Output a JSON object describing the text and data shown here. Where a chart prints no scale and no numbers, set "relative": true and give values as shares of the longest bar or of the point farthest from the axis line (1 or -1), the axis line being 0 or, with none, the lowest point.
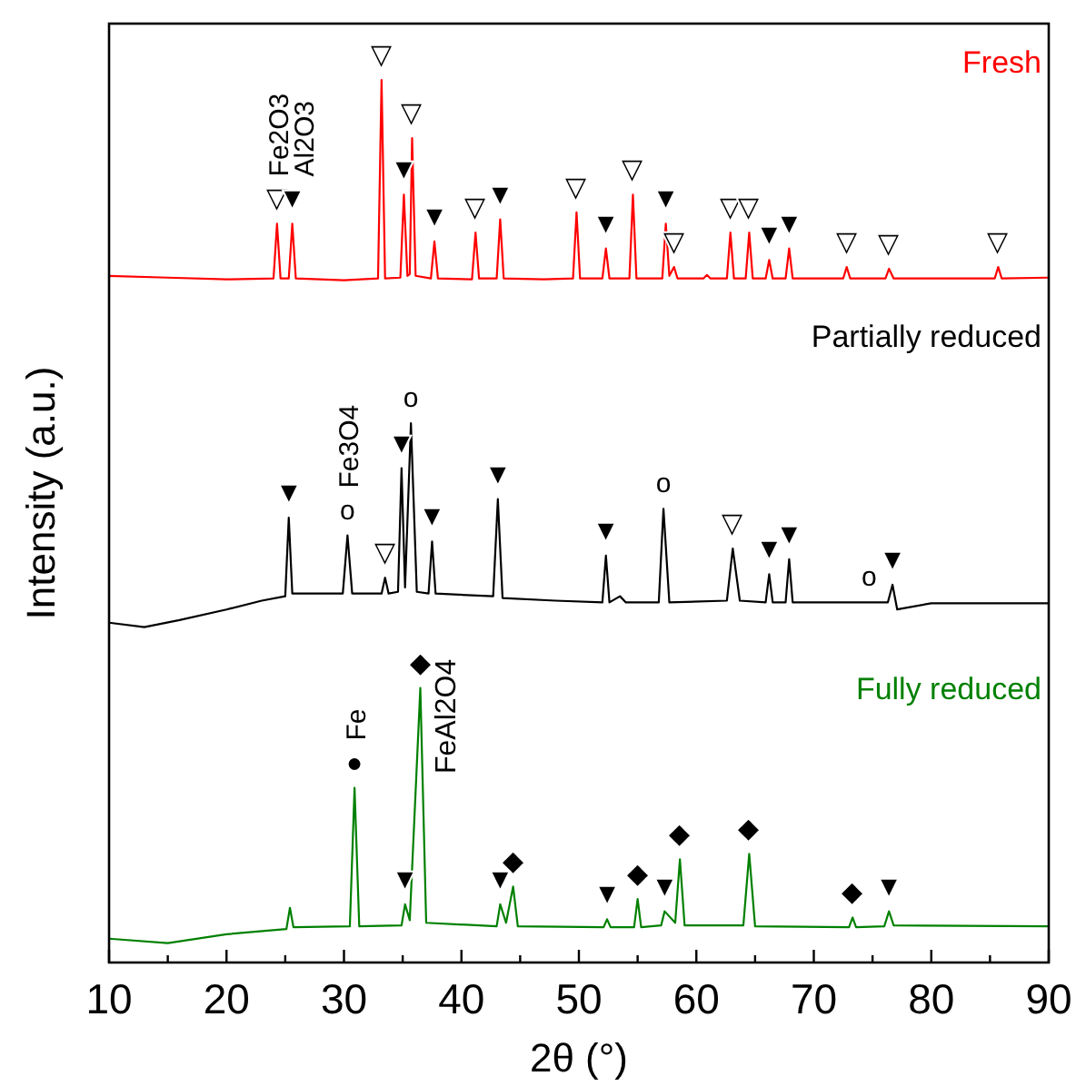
{
  "chart_data": {
    "type": "line",
    "relative": true,
    "xlabel": "2θ (°)",
    "ylabel": "Intensity (a.u.)",
    "xlim": [
      10,
      90
    ],
    "xticks": [
      10,
      {
        "value": 15,
        "label": null
      },
      20,
      {
        "value": 25,
        "label": null
      },
      30,
      {
        "value": 35,
        "label": null
      },
      40,
      {
        "value": 45,
        "label": null
      },
      50,
      {
        "value": 55,
        "label": null
      },
      60,
      {
        "value": 65,
        "label": null
      },
      70,
      {
        "value": 75,
        "label": null
      },
      80,
      {
        "value": 85,
        "label": null
      },
      90
    ],
    "grid": false,
    "marker": "none",
    "line_style": "solid",
    "series": [
      {
        "name": "Fresh",
        "color": "#ff0000",
        "x": [
          10,
          15,
          20,
          24.0,
          24.3,
          24.6,
          25.3,
          25.6,
          25.9,
          30,
          32.9,
          33.2,
          33.5,
          34.8,
          35.1,
          35.4,
          35.6,
          35.8,
          36.1,
          37.4,
          37.7,
          38.0,
          40.9,
          41.2,
          41.5,
          43.0,
          43.3,
          43.6,
          47,
          49.5,
          49.8,
          50.1,
          52.0,
          52.3,
          52.6,
          54.3,
          54.6,
          54.9,
          57.1,
          57.4,
          57.7,
          58.1,
          58.4,
          60.6,
          60.9,
          61.2,
          62.6,
          62.9,
          63.2,
          64.2,
          64.5,
          64.8,
          65.9,
          66.2,
          66.5,
          67.6,
          67.9,
          68.2,
          72.5,
          72.8,
          73.1,
          76.1,
          76.4,
          76.8,
          85.4,
          85.7,
          86.0,
          90
        ],
        "values": [
          0.778,
          0.776,
          0.774,
          0.775,
          0.837,
          0.775,
          0.775,
          0.837,
          0.775,
          0.773,
          0.775,
          1.0,
          0.775,
          0.776,
          0.87,
          0.778,
          0.78,
          0.934,
          0.778,
          0.775,
          0.817,
          0.775,
          0.774,
          0.827,
          0.775,
          0.775,
          0.842,
          0.775,
          0.774,
          0.775,
          0.85,
          0.775,
          0.775,
          0.809,
          0.775,
          0.775,
          0.87,
          0.775,
          0.775,
          0.837,
          0.778,
          0.788,
          0.775,
          0.775,
          0.779,
          0.775,
          0.775,
          0.827,
          0.775,
          0.775,
          0.827,
          0.775,
          0.775,
          0.796,
          0.775,
          0.775,
          0.809,
          0.775,
          0.775,
          0.788,
          0.775,
          0.775,
          0.786,
          0.775,
          0.775,
          0.788,
          0.775,
          0.776
        ]
      },
      {
        "name": "Partially reduced",
        "color": "#000000",
        "x": [
          10,
          13,
          16,
          20,
          23,
          25.0,
          25.3,
          25.6,
          29.9,
          30.3,
          30.7,
          33.2,
          33.5,
          33.8,
          34.6,
          34.9,
          35.2,
          35.7,
          36.2,
          37.2,
          37.5,
          37.8,
          42.7,
          43.1,
          43.5,
          48,
          52.0,
          52.3,
          52.6,
          53.5,
          54,
          56.8,
          57.2,
          57.7,
          62.6,
          63.1,
          63.7,
          65.9,
          66.2,
          66.5,
          67.6,
          67.9,
          68.2,
          76.3,
          76.7,
          77.1,
          80,
          90
        ],
        "values": [
          0.385,
          0.38,
          0.388,
          0.4,
          0.41,
          0.415,
          0.504,
          0.418,
          0.418,
          0.484,
          0.418,
          0.418,
          0.436,
          0.418,
          0.42,
          0.56,
          0.425,
          0.611,
          0.42,
          0.418,
          0.477,
          0.418,
          0.415,
          0.525,
          0.413,
          0.41,
          0.408,
          0.461,
          0.408,
          0.415,
          0.408,
          0.408,
          0.514,
          0.408,
          0.41,
          0.469,
          0.41,
          0.408,
          0.44,
          0.408,
          0.408,
          0.457,
          0.408,
          0.408,
          0.428,
          0.4,
          0.407,
          0.407
        ]
      },
      {
        "name": "Fully reduced",
        "color": "#008000",
        "x": [
          10,
          15,
          20,
          25.1,
          25.4,
          25.7,
          30.5,
          30.9,
          31.3,
          34.9,
          35.2,
          35.6,
          36.5,
          37.0,
          43.0,
          43.3,
          43.8,
          44.4,
          44.8,
          52.1,
          52.4,
          52.7,
          54.7,
          55.0,
          55.3,
          57.0,
          57.3,
          58.2,
          58.6,
          59.0,
          64.0,
          64.5,
          65.0,
          73.0,
          73.3,
          73.6,
          76.0,
          76.4,
          76.8,
          90
        ],
        "values": [
          0.027,
          0.022,
          0.032,
          0.038,
          0.062,
          0.04,
          0.041,
          0.198,
          0.041,
          0.042,
          0.066,
          0.048,
          0.311,
          0.045,
          0.041,
          0.066,
          0.045,
          0.086,
          0.041,
          0.04,
          0.049,
          0.04,
          0.04,
          0.072,
          0.04,
          0.042,
          0.058,
          0.045,
          0.117,
          0.042,
          0.042,
          0.123,
          0.041,
          0.04,
          0.051,
          0.04,
          0.041,
          0.058,
          0.042,
          0.041
        ]
      }
    ],
    "annotations": [
      {
        "text": "Fe2O3",
        "x": 24.3,
        "y": 0.837
      },
      {
        "text": "Al2O3",
        "x": 25.6,
        "y": 0.837
      },
      {
        "text": "▽",
        "x": 24.3,
        "y": 0.837
      },
      {
        "text": "▼",
        "x": 25.6,
        "y": 0.837
      },
      {
        "text": "▽",
        "x": 33.2,
        "y": 1.0
      },
      {
        "text": "▼",
        "x": 35.1,
        "y": 0.87
      },
      {
        "text": "▽",
        "x": 35.8,
        "y": 0.934
      },
      {
        "text": "▼",
        "x": 37.7,
        "y": 0.817
      },
      {
        "text": "▽",
        "x": 41.2,
        "y": 0.827
      },
      {
        "text": "▼",
        "x": 43.3,
        "y": 0.842
      },
      {
        "text": "▽",
        "x": 49.8,
        "y": 0.85
      },
      {
        "text": "▼",
        "x": 52.3,
        "y": 0.809
      },
      {
        "text": "▽",
        "x": 54.6,
        "y": 0.87
      },
      {
        "text": "▼",
        "x": 57.4,
        "y": 0.837
      },
      {
        "text": "▽",
        "x": 58.1,
        "y": 0.788
      },
      {
        "text": "▽",
        "x": 62.9,
        "y": 0.827
      },
      {
        "text": "▽",
        "x": 64.5,
        "y": 0.827
      },
      {
        "text": "▼",
        "x": 66.2,
        "y": 0.796
      },
      {
        "text": "▼",
        "x": 67.9,
        "y": 0.809
      },
      {
        "text": "▽",
        "x": 72.8,
        "y": 0.788
      },
      {
        "text": "▽",
        "x": 76.4,
        "y": 0.786
      },
      {
        "text": "▽",
        "x": 85.7,
        "y": 0.788
      },
      {
        "text": "Fe3O4",
        "x": 30.3,
        "y": 0.484
      },
      {
        "text": "▼",
        "x": 25.3,
        "y": 0.504
      },
      {
        "text": "o",
        "x": 30.3,
        "y": 0.484
      },
      {
        "text": "▽",
        "x": 33.5,
        "y": 0.436
      },
      {
        "text": "▼",
        "x": 34.9,
        "y": 0.56
      },
      {
        "text": "o",
        "x": 35.7,
        "y": 0.611
      },
      {
        "text": "▼",
        "x": 37.5,
        "y": 0.477
      },
      {
        "text": "▼",
        "x": 43.1,
        "y": 0.525
      },
      {
        "text": "▼",
        "x": 52.3,
        "y": 0.461
      },
      {
        "text": "o",
        "x": 57.2,
        "y": 0.514
      },
      {
        "text": "▽",
        "x": 63.1,
        "y": 0.469
      },
      {
        "text": "▼",
        "x": 66.2,
        "y": 0.44
      },
      {
        "text": "▼",
        "x": 67.9,
        "y": 0.457
      },
      {
        "text": "o",
        "x": 74.7,
        "y": 0.408
      },
      {
        "text": "▼",
        "x": 76.7,
        "y": 0.428
      },
      {
        "text": "Fe",
        "x": 30.9,
        "y": 0.198
      },
      {
        "text": "FeAl2O4",
        "x": 36.5,
        "y": 0.311
      },
      {
        "text": "●",
        "x": 30.9,
        "y": 0.198
      },
      {
        "text": "◆",
        "x": 36.5,
        "y": 0.311
      },
      {
        "text": "▼",
        "x": 35.2,
        "y": 0.066
      },
      {
        "text": "▼",
        "x": 43.3,
        "y": 0.066
      },
      {
        "text": "◆",
        "x": 44.4,
        "y": 0.086
      },
      {
        "text": "▼",
        "x": 52.4,
        "y": 0.049
      },
      {
        "text": "◆",
        "x": 55.0,
        "y": 0.072
      },
      {
        "text": "▼",
        "x": 57.3,
        "y": 0.058
      },
      {
        "text": "◆",
        "x": 58.6,
        "y": 0.117
      },
      {
        "text": "◆",
        "x": 64.5,
        "y": 0.123
      },
      {
        "text": "◆",
        "x": 73.3,
        "y": 0.051
      },
      {
        "text": "▼",
        "x": 76.4,
        "y": 0.058
      }
    ]
  }
}
